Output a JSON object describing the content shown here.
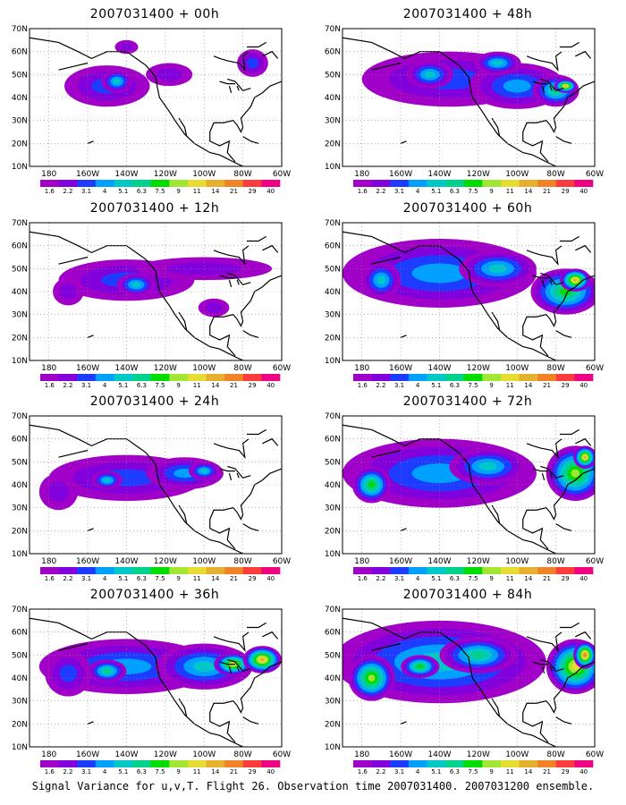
{
  "chart_data": {
    "type": "heatmap",
    "color_levels": [
      "1.6",
      "2.2",
      "3.1",
      "4",
      "5.1",
      "6.3",
      "7.5",
      "9",
      "11",
      "14",
      "21",
      "29",
      "40"
    ],
    "colors": [
      "#a000c8",
      "#8200dc",
      "#1e3cff",
      "#00a0ff",
      "#00c8c8",
      "#00d28c",
      "#00dc00",
      "#a0e632",
      "#e6dc32",
      "#e6af2d",
      "#f08228",
      "#fa3c3c",
      "#f00082"
    ],
    "x_ticks": [
      "180",
      "160W",
      "140W",
      "120W",
      "100W",
      "80W",
      "60W"
    ],
    "y_ticks": [
      "70N",
      "60N",
      "50N",
      "40N",
      "30N",
      "20N",
      "10N"
    ],
    "panels": [
      {
        "title": "2007031400 + 00h",
        "blobs": [
          [
            -150,
            45,
            22,
            9,
            2
          ],
          [
            -145,
            47,
            8,
            5,
            4
          ],
          [
            -118,
            50,
            12,
            5,
            1
          ],
          [
            -75,
            55,
            8,
            6,
            2
          ],
          [
            -140,
            62,
            6,
            3,
            1
          ]
        ]
      },
      {
        "title": "2007031400 + 12h",
        "blobs": [
          [
            -140,
            45,
            35,
            9,
            2
          ],
          [
            -135,
            43,
            10,
            5,
            4
          ],
          [
            -100,
            50,
            35,
            5,
            1
          ],
          [
            -170,
            40,
            8,
            6,
            1
          ],
          [
            -95,
            33,
            8,
            4,
            1
          ]
        ]
      },
      {
        "title": "2007031400 + 24h",
        "blobs": [
          [
            -140,
            43,
            40,
            10,
            2
          ],
          [
            -110,
            45,
            20,
            7,
            3
          ],
          [
            -150,
            42,
            8,
            4,
            4
          ],
          [
            -100,
            46,
            8,
            4,
            4
          ],
          [
            -175,
            37,
            10,
            8,
            1
          ]
        ]
      },
      {
        "title": "2007031400 + 36h",
        "blobs": [
          [
            -140,
            45,
            45,
            12,
            3
          ],
          [
            -100,
            45,
            25,
            10,
            4
          ],
          [
            -85,
            46,
            10,
            5,
            8
          ],
          [
            -170,
            42,
            12,
            10,
            2
          ],
          [
            -150,
            43,
            10,
            5,
            5
          ],
          [
            -70,
            48,
            10,
            6,
            9
          ]
        ]
      },
      {
        "title": "2007031400 + 48h",
        "blobs": [
          [
            -135,
            48,
            45,
            12,
            2
          ],
          [
            -100,
            45,
            25,
            10,
            3
          ],
          [
            -80,
            43,
            12,
            7,
            5
          ],
          [
            -75,
            45,
            6,
            3,
            9
          ],
          [
            -145,
            50,
            12,
            6,
            4
          ],
          [
            -110,
            55,
            12,
            5,
            4
          ]
        ]
      },
      {
        "title": "2007031400 + 60h",
        "blobs": [
          [
            -140,
            48,
            50,
            15,
            3
          ],
          [
            -110,
            50,
            20,
            8,
            4
          ],
          [
            -75,
            40,
            18,
            10,
            6
          ],
          [
            -70,
            45,
            8,
            5,
            9
          ],
          [
            -170,
            45,
            10,
            8,
            4
          ]
        ]
      },
      {
        "title": "2007031400 + 72h",
        "blobs": [
          [
            -140,
            45,
            50,
            15,
            3
          ],
          [
            -115,
            48,
            20,
            8,
            4
          ],
          [
            -70,
            45,
            15,
            12,
            7
          ],
          [
            -65,
            52,
            6,
            5,
            9
          ],
          [
            -175,
            40,
            10,
            8,
            6
          ]
        ]
      },
      {
        "title": "2007031400 + 84h",
        "blobs": [
          [
            -140,
            47,
            55,
            18,
            4
          ],
          [
            -120,
            50,
            20,
            8,
            5
          ],
          [
            -70,
            45,
            15,
            12,
            8
          ],
          [
            -65,
            50,
            6,
            6,
            10
          ],
          [
            -175,
            40,
            12,
            10,
            7
          ],
          [
            -150,
            45,
            10,
            5,
            6
          ]
        ]
      }
    ],
    "caption": "Signal Variance for u,v,T. Flight 26. Observation time 2007031400. 2007031200 ensemble."
  }
}
